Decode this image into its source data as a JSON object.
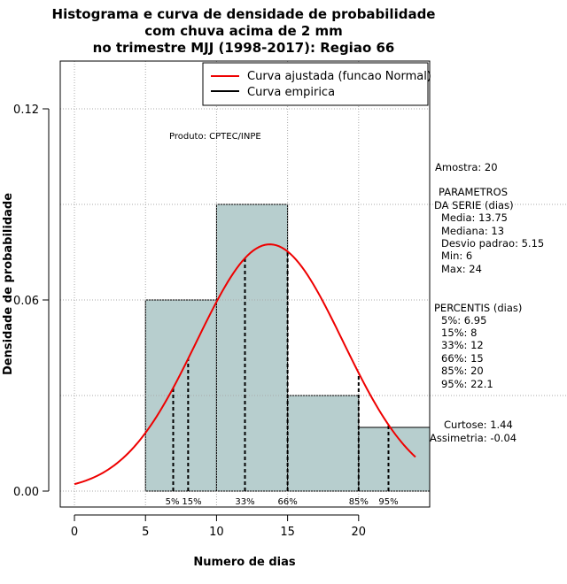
{
  "chart_data": {
    "type": "bar",
    "title_lines": [
      "Histograma e curva de densidade de probabilidade",
      "com chuva acima de 2 mm",
      "no trimestre MJJ (1998-2017): Regiao 66"
    ],
    "xlabel": "Numero de dias",
    "ylabel": "Densidade de probabilidade",
    "xlim": [
      -1,
      25
    ],
    "ylim": [
      -0.005,
      0.135
    ],
    "x_ticks": [
      0,
      5,
      10,
      15,
      20
    ],
    "y_ticks": [
      0.0,
      0.06,
      0.12
    ],
    "y_tick_labels": [
      "0.00",
      "0.06",
      "0.12"
    ],
    "bars": [
      {
        "x0": 5,
        "x1": 10,
        "density": 0.06
      },
      {
        "x0": 10,
        "x1": 15,
        "density": 0.09
      },
      {
        "x0": 15,
        "x1": 20,
        "density": 0.03
      },
      {
        "x0": 20,
        "x1": 25,
        "density": 0.02
      }
    ],
    "normal_curve": {
      "mean": 13.75,
      "sd": 5.15,
      "x_from": 0,
      "x_to": 24
    },
    "percentile_marks": [
      {
        "x": 6.95,
        "label": "5%"
      },
      {
        "x": 8,
        "label": "15%"
      },
      {
        "x": 12,
        "label": "33%"
      },
      {
        "x": 15,
        "label": "66%"
      },
      {
        "x": 20,
        "label": "85%"
      },
      {
        "x": 22.1,
        "label": "95%"
      }
    ],
    "legend": [
      {
        "label": "Curva ajustada (funcao Normal)",
        "color": "#ee0000"
      },
      {
        "label": "Curva empirica",
        "color": "#000000"
      }
    ],
    "product_label": "Produto: CPTEC/INPE",
    "colors": {
      "bar_fill": "#b7cece",
      "curve": "#ee0000",
      "grid": "#aaaaaa"
    }
  },
  "stats": {
    "sample": "Amostra: 20",
    "params_title": [
      "PARAMETROS",
      "DA SERIE (dias)"
    ],
    "params": [
      "Media: 13.75",
      "Mediana: 13",
      "Desvio padrao: 5.15",
      "Min: 6",
      "Max: 24"
    ],
    "percentiles_title": "PERCENTIS (dias)",
    "percentiles": [
      "5%: 6.95",
      "15%: 8",
      "33%: 12",
      "66%: 15",
      "85%: 20",
      "95%: 22.1"
    ],
    "curtose": "Curtose: 1.44",
    "assimetria": "Assimetria: -0.04"
  }
}
